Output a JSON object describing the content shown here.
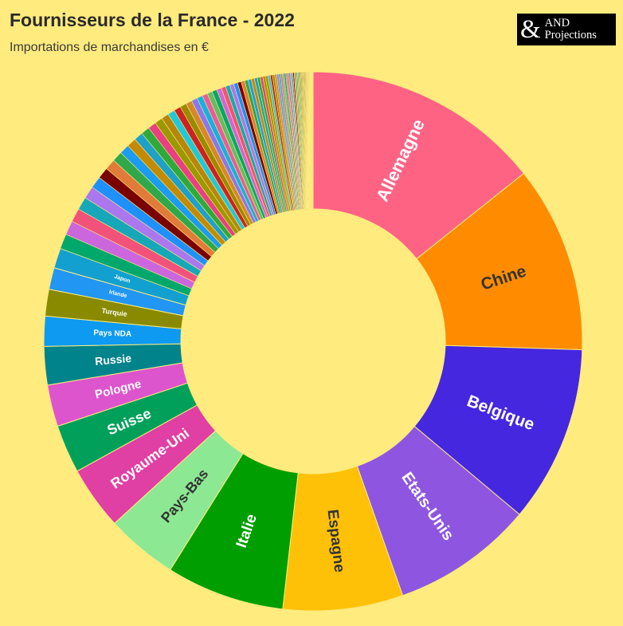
{
  "header": {
    "title": "Fournisseurs de la France - 2022",
    "subtitle": "Importations de marchandises en €"
  },
  "logo": {
    "symbol": "&",
    "line1": "AND",
    "line2": "Projections"
  },
  "chart_data": {
    "type": "pie",
    "variant": "donut",
    "title": "Fournisseurs de la France - 2022",
    "subtitle": "Importations de marchandises en €",
    "unit": "share of imports (%)",
    "slices": [
      {
        "name": "Allemagne",
        "value": 14.3,
        "color": "#FF6384",
        "label_color": "#FFFFFF",
        "label_size": 22
      },
      {
        "name": "Chine",
        "value": 11.2,
        "color": "#FF8C00",
        "label_color": "#333333",
        "label_size": 21
      },
      {
        "name": "Belgique",
        "value": 10.6,
        "color": "#4527E0",
        "label_color": "#FFFFFF",
        "label_size": 21
      },
      {
        "name": "Etats-Unis",
        "value": 8.5,
        "color": "#8E56E0",
        "label_color": "#FFFFFF",
        "label_size": 20
      },
      {
        "name": "Espagne",
        "value": 7.2,
        "color": "#FFC107",
        "label_color": "#333333",
        "label_size": 19
      },
      {
        "name": "Italie",
        "value": 7.1,
        "color": "#009E00",
        "label_color": "#FFFFFF",
        "label_size": 19
      },
      {
        "name": "Pays-Bas",
        "value": 4.3,
        "color": "#8DE894",
        "label_color": "#333333",
        "label_size": 18
      },
      {
        "name": "Royaume-Uni",
        "value": 3.8,
        "color": "#E03FA3",
        "label_color": "#FFFFFF",
        "label_size": 18
      },
      {
        "name": "Suisse",
        "value": 2.9,
        "color": "#00A05A",
        "label_color": "#FFFFFF",
        "label_size": 18
      },
      {
        "name": "Pologne",
        "value": 2.5,
        "color": "#DD55CC",
        "label_color": "#FFFFFF",
        "label_size": 15
      },
      {
        "name": "Russie",
        "value": 2.3,
        "color": "#00838A",
        "label_color": "#FFFFFF",
        "label_size": 14
      },
      {
        "name": "Pays NDA",
        "value": 1.8,
        "color": "#0D9AF0",
        "label_color": "#FFFFFF",
        "label_size": 10
      },
      {
        "name": "Turquie",
        "value": 1.6,
        "color": "#8A8A00",
        "label_color": "#FFFFFF",
        "label_size": 9
      },
      {
        "name": "Irlande",
        "value": 1.3,
        "color": "#2196F3",
        "label_color": "#FFFFFF",
        "label_size": 7
      },
      {
        "name": "Japon",
        "value": 1.2,
        "color": "#12A0D0",
        "label_color": "#FFFFFF",
        "label_size": 7
      }
    ],
    "others": {
      "count": 82,
      "total_value": 19.4,
      "palette": [
        "#00A86B",
        "#CC66DD",
        "#F0527A",
        "#16A8B8",
        "#AA77EE",
        "#1E90FF",
        "#7A0000",
        "#E07B39",
        "#2EA84A",
        "#1A9CF0",
        "#C48A00",
        "#1EA0C8",
        "#2EAA3C",
        "#E84080",
        "#999900",
        "#B8860B",
        "#22C8D8",
        "#CC2222",
        "#9A8A00",
        "#D4882A",
        "#8877EE",
        "#16B0E0",
        "#E85C9A",
        "#66BB66"
      ]
    }
  }
}
